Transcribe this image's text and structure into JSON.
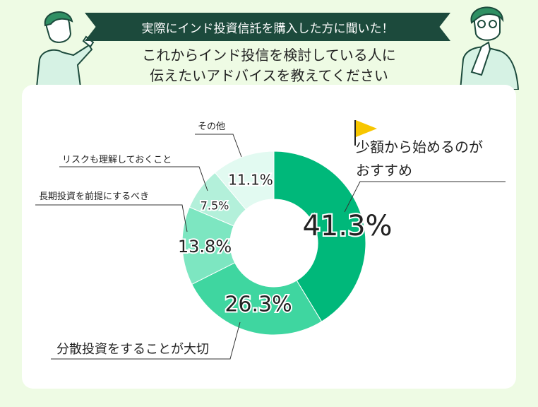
{
  "header": {
    "banner": "実際にインド投資信託を購入した方に聞いた！",
    "title_line1": "これからインド投信を検討している人に",
    "title_line2": "伝えたいアドバイスを教えてください"
  },
  "chart_data": {
    "type": "pie",
    "donut": true,
    "slices": [
      {
        "label": "少額から始めるのがおすすめ",
        "label_lines": [
          "少額から始めるのが",
          "おすすめ"
        ],
        "value": 41.3,
        "display": "41.3%",
        "color": "#00b87a"
      },
      {
        "label": "分散投資をすることが大切",
        "label_lines": [
          "分散投資をすることが大切"
        ],
        "value": 26.3,
        "display": "26.3%",
        "color": "#3fd6a0"
      },
      {
        "label": "長期投資を前提にするべき",
        "label_lines": [
          "長期投資を前提にするべき"
        ],
        "value": 13.8,
        "display": "13.8%",
        "color": "#7de6c1"
      },
      {
        "label": "リスクも理解しておくこと",
        "label_lines": [
          "リスクも理解しておくこと"
        ],
        "value": 7.5,
        "display": "7.5%",
        "color": "#b3f0da"
      },
      {
        "label": "その他",
        "label_lines": [
          "その他"
        ],
        "value": 11.1,
        "display": "11.1%",
        "color": "#e2faf1"
      }
    ]
  },
  "colors": {
    "background": "#eefbe4",
    "banner": "#1c4a3c",
    "flag": "#f7c600"
  },
  "icons": [
    "person-pointing-icon",
    "person-thinking-icon",
    "flag-icon"
  ]
}
